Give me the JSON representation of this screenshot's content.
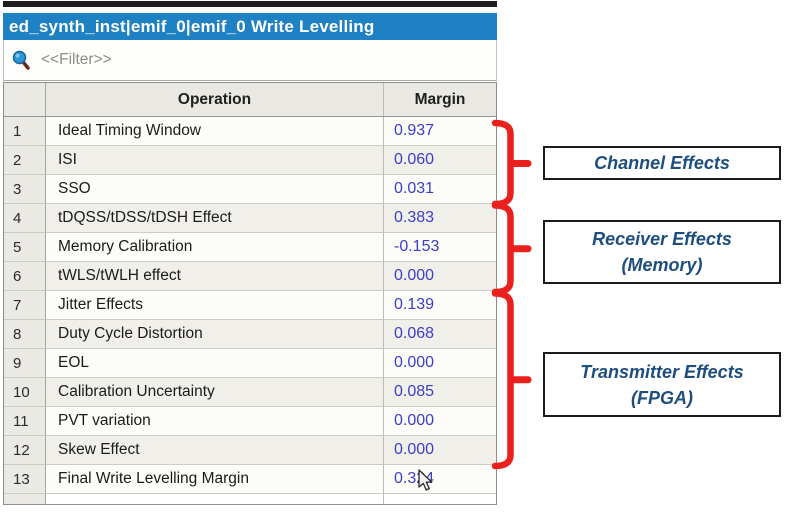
{
  "panel": {
    "title": "ed_synth_inst|emif_0|emif_0 Write Levelling"
  },
  "filter": {
    "placeholder": "<<Filter>>",
    "icon": "search-magnifier"
  },
  "table": {
    "headers": {
      "number": "",
      "operation": "Operation",
      "margin": "Margin"
    },
    "rows": [
      {
        "num": "1",
        "operation": "Ideal Timing Window",
        "margin": "0.937"
      },
      {
        "num": "2",
        "operation": "ISI",
        "margin": "0.060"
      },
      {
        "num": "3",
        "operation": "SSO",
        "margin": "0.031"
      },
      {
        "num": "4",
        "operation": "tDQSS/tDSS/tDSH Effect",
        "margin": "0.383"
      },
      {
        "num": "5",
        "operation": "Memory Calibration",
        "margin": "-0.153"
      },
      {
        "num": "6",
        "operation": "tWLS/tWLH effect",
        "margin": "0.000"
      },
      {
        "num": "7",
        "operation": "Jitter Effects",
        "margin": "0.139"
      },
      {
        "num": "8",
        "operation": "Duty Cycle Distortion",
        "margin": "0.068"
      },
      {
        "num": "9",
        "operation": "EOL",
        "margin": "0.000"
      },
      {
        "num": "10",
        "operation": "Calibration Uncertainty",
        "margin": "0.085"
      },
      {
        "num": "11",
        "operation": "PVT variation",
        "margin": "0.000"
      },
      {
        "num": "12",
        "operation": "Skew Effect",
        "margin": "0.000"
      },
      {
        "num": "13",
        "operation": "Final Write Levelling Margin",
        "margin": "0.324"
      }
    ]
  },
  "annotations": [
    {
      "id": "channel-effects",
      "lines": [
        "Channel Effects"
      ],
      "row_range": "1-3"
    },
    {
      "id": "receiver-effects-memory",
      "lines": [
        "Receiver Effects",
        "(Memory)"
      ],
      "row_range": "4-6"
    },
    {
      "id": "transmitter-effects-fpga",
      "lines": [
        "Transmitter Effects",
        "(FPGA)"
      ],
      "row_range": "7-12"
    }
  ],
  "colors": {
    "title_bar_bg": "#1e81c4",
    "margin_value": "#3d3dca",
    "brace_red": "#e9201c",
    "annotation_text": "#1e4e7d"
  }
}
